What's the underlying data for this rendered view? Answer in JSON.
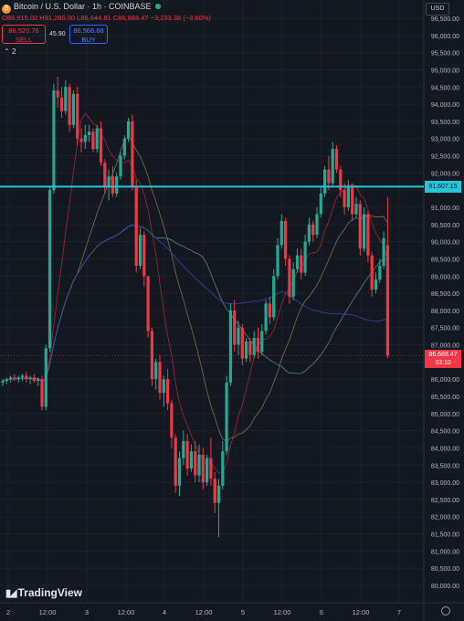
{
  "header": {
    "symbol": "Bitcoin / U.S. Dollar · 1h · COINBASE",
    "ohlc": "O89,915.02 H91,280.00 L86,644.81 C86,688.47 −3,233.38 (−3.60%)"
  },
  "trade": {
    "sell_price": "86,520.76",
    "sell_label": "SELL",
    "spread": "45.90",
    "buy_price": "86,566.66",
    "buy_label": "BUY"
  },
  "indicators_count": "2",
  "currency": "USD",
  "price_axis": [
    "96,500.00",
    "96,000.00",
    "95,500.00",
    "95,000.00",
    "94,500.00",
    "94,000.00",
    "93,500.00",
    "93,000.00",
    "92,500.00",
    "92,000.00",
    "91,500.00",
    "91,000.00",
    "90,500.00",
    "90,000.00",
    "89,500.00",
    "89,000.00",
    "88,500.00",
    "88,000.00",
    "87,500.00",
    "87,000.00",
    "86,500.00",
    "86,000.00",
    "85,500.00",
    "85,000.00",
    "84,500.00",
    "84,000.00",
    "83,500.00",
    "83,000.00",
    "82,500.00",
    "82,000.00",
    "81,500.00",
    "81,000.00",
    "80,500.00",
    "80,000.00"
  ],
  "time_axis": [
    "2",
    "12:00",
    "3",
    "12:00",
    "4",
    "12:00",
    "5",
    "12:00",
    "6",
    "12:00",
    "7"
  ],
  "horizontal_level": {
    "price": 91600,
    "label": "91,607.15",
    "color": "#26c6da"
  },
  "last_price": {
    "price": 86688.47,
    "label": "86,688.47",
    "countdown": "33:10",
    "color": "#f23645"
  },
  "brand": "TradingView",
  "colors": {
    "up": "#22ab94",
    "down": "#f23645",
    "bg": "#141821"
  },
  "chart_data": {
    "type": "candlestick",
    "ylim": [
      80000,
      96800
    ],
    "candles": [
      [
        85900,
        86000,
        85800,
        85950
      ],
      [
        85950,
        86050,
        85850,
        86000
      ],
      [
        86000,
        86100,
        85900,
        86050
      ],
      [
        86050,
        86150,
        85950,
        86000
      ],
      [
        86000,
        86100,
        85900,
        86050
      ],
      [
        86050,
        86150,
        85950,
        86100
      ],
      [
        86100,
        86200,
        85900,
        86000
      ],
      [
        86000,
        86100,
        85850,
        86050
      ],
      [
        86050,
        86150,
        85900,
        85950
      ],
      [
        85950,
        86050,
        85800,
        86000
      ],
      [
        86000,
        86100,
        85100,
        85200
      ],
      [
        85200,
        87000,
        85100,
        86900
      ],
      [
        86900,
        91600,
        86800,
        91500
      ],
      [
        91500,
        94600,
        91400,
        94400
      ],
      [
        94400,
        94800,
        93900,
        94200
      ],
      [
        94200,
        94500,
        93600,
        93800
      ],
      [
        93800,
        94700,
        93700,
        94500
      ],
      [
        94500,
        94600,
        93200,
        93400
      ],
      [
        93400,
        94400,
        93300,
        94300
      ],
      [
        94300,
        94500,
        92800,
        93000
      ],
      [
        93000,
        93300,
        92600,
        92900
      ],
      [
        92900,
        93400,
        92700,
        93100
      ],
      [
        93100,
        93400,
        92900,
        93200
      ],
      [
        93200,
        93300,
        92600,
        92700
      ],
      [
        92700,
        93400,
        92600,
        93300
      ],
      [
        93300,
        93500,
        92200,
        92300
      ],
      [
        92300,
        92400,
        91400,
        91600
      ],
      [
        91600,
        92100,
        91200,
        91900
      ],
      [
        91900,
        92200,
        91300,
        91400
      ],
      [
        91400,
        92000,
        91300,
        91900
      ],
      [
        91900,
        92600,
        91800,
        92500
      ],
      [
        92500,
        93100,
        92400,
        93000
      ],
      [
        93000,
        93600,
        92900,
        93500
      ],
      [
        93500,
        93700,
        91500,
        91600
      ],
      [
        91600,
        91800,
        89100,
        89300
      ],
      [
        89300,
        90400,
        89200,
        90200
      ],
      [
        90200,
        90300,
        88700,
        89000
      ],
      [
        89000,
        88900,
        87200,
        87400
      ],
      [
        87400,
        87500,
        85800,
        86000
      ],
      [
        86000,
        86600,
        85700,
        86500
      ],
      [
        86500,
        86700,
        85400,
        85600
      ],
      [
        85600,
        86100,
        85200,
        86000
      ],
      [
        86000,
        86300,
        85100,
        85300
      ],
      [
        85300,
        85400,
        84000,
        84300
      ],
      [
        84300,
        84400,
        82700,
        82900
      ],
      [
        82900,
        83900,
        82600,
        83700
      ],
      [
        83700,
        84500,
        83500,
        84200
      ],
      [
        84200,
        84400,
        83200,
        83400
      ],
      [
        83400,
        84100,
        83300,
        83900
      ],
      [
        83900,
        84200,
        83000,
        83200
      ],
      [
        83200,
        84100,
        83000,
        83800
      ],
      [
        83800,
        84000,
        82800,
        83000
      ],
      [
        83000,
        83800,
        82900,
        83700
      ],
      [
        83700,
        84300,
        82900,
        83100
      ],
      [
        83100,
        83300,
        82100,
        82400
      ],
      [
        82400,
        83100,
        81400,
        82900
      ],
      [
        82900,
        84200,
        82800,
        83900
      ],
      [
        83900,
        86100,
        83800,
        85900
      ],
      [
        85900,
        88200,
        85800,
        88000
      ],
      [
        88000,
        88300,
        86800,
        87000
      ],
      [
        87000,
        87700,
        86700,
        87500
      ],
      [
        87500,
        87600,
        86400,
        86600
      ],
      [
        86600,
        87200,
        86500,
        87100
      ],
      [
        87100,
        87200,
        86500,
        86700
      ],
      [
        86700,
        87400,
        86600,
        87200
      ],
      [
        87200,
        87500,
        86600,
        86800
      ],
      [
        86800,
        87600,
        86700,
        87400
      ],
      [
        87400,
        88300,
        87300,
        88200
      ],
      [
        88200,
        88400,
        87600,
        87800
      ],
      [
        87800,
        89200,
        87700,
        89000
      ],
      [
        89000,
        90100,
        88900,
        89900
      ],
      [
        89900,
        90800,
        89800,
        90600
      ],
      [
        90600,
        90700,
        89300,
        89500
      ],
      [
        89500,
        89600,
        88200,
        88400
      ],
      [
        88400,
        89400,
        88300,
        89200
      ],
      [
        89200,
        89800,
        89100,
        89600
      ],
      [
        89600,
        89800,
        88900,
        89100
      ],
      [
        89100,
        90200,
        89000,
        90000
      ],
      [
        90000,
        90700,
        89900,
        90500
      ],
      [
        90500,
        90600,
        90000,
        90200
      ],
      [
        90200,
        91000,
        90100,
        90800
      ],
      [
        90800,
        91600,
        90700,
        91400
      ],
      [
        91400,
        92200,
        91300,
        92100
      ],
      [
        92100,
        92500,
        91500,
        91700
      ],
      [
        91700,
        92900,
        91600,
        92700
      ],
      [
        92700,
        92800,
        92000,
        92100
      ],
      [
        92100,
        92200,
        91300,
        91500
      ],
      [
        91500,
        91700,
        90800,
        91000
      ],
      [
        91000,
        91800,
        90900,
        91600
      ],
      [
        91600,
        91700,
        90600,
        90800
      ],
      [
        90800,
        91300,
        90700,
        91100
      ],
      [
        91100,
        91200,
        89600,
        89800
      ],
      [
        89800,
        91000,
        89700,
        90800
      ],
      [
        90800,
        90900,
        89400,
        89600
      ],
      [
        89600,
        89700,
        88400,
        88600
      ],
      [
        88600,
        89100,
        88500,
        88900
      ],
      [
        88900,
        89500,
        88800,
        89300
      ],
      [
        89300,
        90300,
        89200,
        90100
      ],
      [
        89900,
        91300,
        86600,
        86688
      ]
    ]
  }
}
